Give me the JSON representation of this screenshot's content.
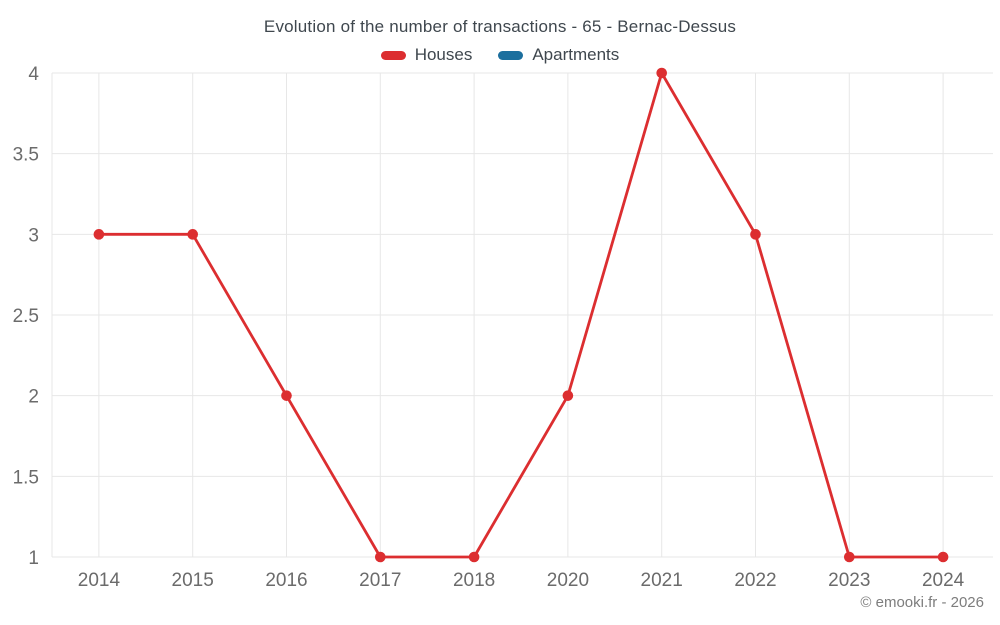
{
  "title": "Evolution of the number of transactions - 65 - Bernac-Dessus",
  "footer": "© emooki.fr - 2026",
  "legend": [
    {
      "label": "Houses",
      "color": "#dc2e30"
    },
    {
      "label": "Apartments",
      "color": "#1c6f9e"
    }
  ],
  "colors": {
    "background": "#ffffff",
    "grid": "#e7e7e7",
    "axis_label": "#6b6b6b",
    "title_text": "#3f474e",
    "footer_text": "#7d7d7d",
    "houses_red": "#dc2e30",
    "apartments_blue": "#1c6f9e"
  },
  "chart_data": {
    "type": "line",
    "title": "Evolution of the number of transactions - 65 - Bernac-Dessus",
    "categories": [
      "2014",
      "2015",
      "2016",
      "2017",
      "2018",
      "2020",
      "2021",
      "2022",
      "2023",
      "2024"
    ],
    "series": [
      {
        "name": "Houses",
        "color": "#dc2e30",
        "values": [
          3,
          3,
          2,
          1,
          1,
          2,
          4,
          3,
          1,
          1
        ]
      },
      {
        "name": "Apartments",
        "color": "#1c6f9e",
        "values": []
      }
    ],
    "xlabel": "",
    "ylabel": "",
    "ylim": [
      1,
      4
    ],
    "yticks": [
      1,
      1.5,
      2,
      2.5,
      3,
      3.5,
      4
    ],
    "grid": true,
    "legend_position": "top",
    "marker": "circle"
  }
}
